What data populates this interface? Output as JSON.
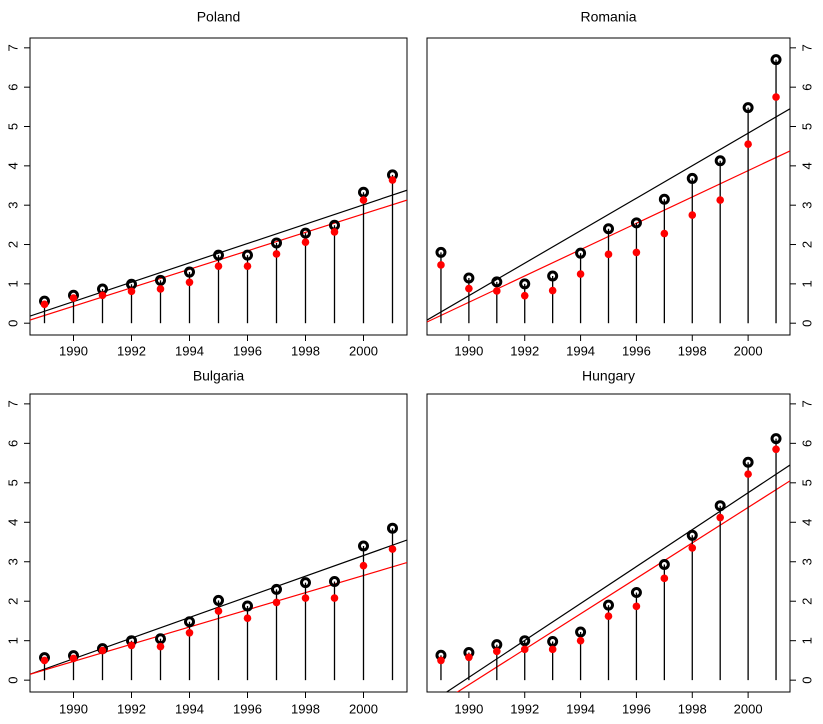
{
  "chart_data": [
    {
      "type": "stem",
      "title": "Poland",
      "y_axis_side": "left",
      "x": [
        1989,
        1990,
        1991,
        1992,
        1993,
        1994,
        1995,
        1996,
        1997,
        1998,
        1999,
        2000,
        2001
      ],
      "series": [
        {
          "color": "#000000",
          "values": [
            0.56,
            0.71,
            0.87,
            0.99,
            1.09,
            1.3,
            1.73,
            1.73,
            2.04,
            2.29,
            2.49,
            3.33,
            3.77
          ]
        },
        {
          "color": "#ff0000",
          "values": [
            0.48,
            0.64,
            0.71,
            0.81,
            0.87,
            1.04,
            1.45,
            1.45,
            1.76,
            2.06,
            2.32,
            3.13,
            3.64
          ]
        }
      ],
      "fits": [
        {
          "color": "#000000",
          "x": [
            1988.5,
            2001.5
          ],
          "values": [
            0.18,
            3.38
          ]
        },
        {
          "color": "#ff0000",
          "x": [
            1988.5,
            2001.5
          ],
          "values": [
            0.08,
            3.13
          ]
        }
      ],
      "xlim": [
        1988.5,
        2001.5
      ],
      "ylim": [
        -0.3,
        7.25
      ],
      "xticks": [
        1990,
        1992,
        1994,
        1996,
        1998,
        2000
      ],
      "yticks": [
        0,
        1,
        2,
        3,
        4,
        5,
        6,
        7
      ]
    },
    {
      "type": "stem",
      "title": "Romania",
      "y_axis_side": "right",
      "x": [
        1989,
        1990,
        1991,
        1992,
        1993,
        1994,
        1995,
        1996,
        1997,
        1998,
        1999,
        2000,
        2001
      ],
      "series": [
        {
          "color": "#000000",
          "values": [
            1.8,
            1.15,
            1.05,
            1.0,
            1.2,
            1.78,
            2.4,
            2.55,
            3.15,
            3.68,
            4.13,
            5.48,
            6.7
          ]
        },
        {
          "color": "#ff0000",
          "values": [
            1.48,
            0.88,
            0.82,
            0.7,
            0.83,
            1.25,
            1.75,
            1.8,
            2.28,
            2.75,
            3.13,
            4.55,
            5.75
          ]
        }
      ],
      "fits": [
        {
          "color": "#000000",
          "x": [
            1988.5,
            2001.5
          ],
          "values": [
            0.08,
            5.45
          ]
        },
        {
          "color": "#ff0000",
          "x": [
            1988.5,
            2001.5
          ],
          "values": [
            0.03,
            4.38
          ]
        }
      ],
      "xlim": [
        1988.5,
        2001.5
      ],
      "ylim": [
        -0.3,
        7.25
      ],
      "xticks": [
        1990,
        1992,
        1994,
        1996,
        1998,
        2000
      ],
      "yticks": [
        0,
        1,
        2,
        3,
        4,
        5,
        6,
        7
      ]
    },
    {
      "type": "stem",
      "title": "Bulgaria",
      "y_axis_side": "left",
      "x": [
        1989,
        1990,
        1991,
        1992,
        1993,
        1994,
        1995,
        1996,
        1997,
        1998,
        1999,
        2000,
        2001
      ],
      "series": [
        {
          "color": "#000000",
          "values": [
            0.57,
            0.62,
            0.8,
            1.0,
            1.05,
            1.48,
            2.02,
            1.88,
            2.3,
            2.47,
            2.5,
            3.4,
            3.85
          ]
        },
        {
          "color": "#ff0000",
          "values": [
            0.5,
            0.55,
            0.75,
            0.88,
            0.85,
            1.2,
            1.75,
            1.57,
            1.97,
            2.08,
            2.08,
            2.9,
            3.32
          ]
        }
      ],
      "fits": [
        {
          "color": "#000000",
          "x": [
            1988.5,
            2001.5
          ],
          "values": [
            0.15,
            3.55
          ]
        },
        {
          "color": "#ff0000",
          "x": [
            1988.5,
            2001.5
          ],
          "values": [
            0.15,
            2.98
          ]
        }
      ],
      "xlim": [
        1988.5,
        2001.5
      ],
      "ylim": [
        -0.3,
        7.25
      ],
      "xticks": [
        1990,
        1992,
        1994,
        1996,
        1998,
        2000
      ],
      "yticks": [
        0,
        1,
        2,
        3,
        4,
        5,
        6,
        7
      ]
    },
    {
      "type": "stem",
      "title": "Hungary",
      "y_axis_side": "right",
      "x": [
        1989,
        1990,
        1991,
        1992,
        1993,
        1994,
        1995,
        1996,
        1997,
        1998,
        1999,
        2000,
        2001
      ],
      "series": [
        {
          "color": "#000000",
          "values": [
            0.63,
            0.7,
            0.9,
            1.0,
            0.98,
            1.22,
            1.9,
            2.22,
            2.93,
            3.67,
            4.42,
            5.52,
            6.12
          ]
        },
        {
          "color": "#ff0000",
          "values": [
            0.5,
            0.58,
            0.73,
            0.78,
            0.78,
            1.0,
            1.62,
            1.87,
            2.58,
            3.35,
            4.12,
            5.22,
            5.85
          ]
        }
      ],
      "fits": [
        {
          "color": "#000000",
          "x": [
            1988.5,
            2001.5
          ],
          "values": [
            -0.63,
            5.45
          ]
        },
        {
          "color": "#ff0000",
          "x": [
            1988.5,
            2001.5
          ],
          "values": [
            -0.79,
            5.05
          ]
        }
      ],
      "xlim": [
        1988.5,
        2001.5
      ],
      "ylim": [
        -0.3,
        7.25
      ],
      "xticks": [
        1990,
        1992,
        1994,
        1996,
        1998,
        2000
      ],
      "yticks": [
        0,
        1,
        2,
        3,
        4,
        5,
        6,
        7
      ]
    }
  ]
}
